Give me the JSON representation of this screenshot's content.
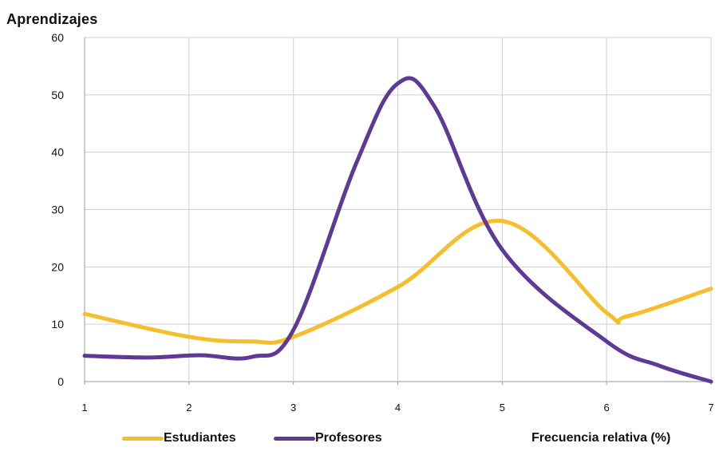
{
  "chart_data": {
    "type": "line",
    "title": "Aprendizajes",
    "xlabel": "Frecuencia relativa (%)",
    "ylabel": "",
    "x": [
      1,
      2,
      3,
      4,
      5,
      6,
      7
    ],
    "xlim": [
      1,
      7
    ],
    "ylim": [
      0,
      60
    ],
    "yticks": [
      0,
      10,
      20,
      30,
      40,
      50,
      60
    ],
    "grid": true,
    "legend_position": "bottom-left",
    "series": [
      {
        "name": "Estudiantes",
        "color": "#F6BE2C",
        "points": [
          [
            1,
            11.8
          ],
          [
            2,
            7.8
          ],
          [
            2.6,
            7.0
          ],
          [
            3,
            7.8
          ],
          [
            4,
            16.5
          ],
          [
            5,
            28.0
          ],
          [
            6,
            12.0
          ],
          [
            6.2,
            11.4
          ],
          [
            7,
            16.2
          ]
        ]
      },
      {
        "name": "Profesores",
        "color": "#5E3A96",
        "points": [
          [
            1,
            4.5
          ],
          [
            1.6,
            4.2
          ],
          [
            2.1,
            4.6
          ],
          [
            2.6,
            4.3
          ],
          [
            3,
            9.0
          ],
          [
            3.6,
            38.0
          ],
          [
            4,
            52.0
          ],
          [
            4.35,
            48.0
          ],
          [
            5,
            23.0
          ],
          [
            6,
            7.0
          ],
          [
            6.5,
            2.8
          ],
          [
            7,
            0
          ]
        ]
      }
    ]
  }
}
